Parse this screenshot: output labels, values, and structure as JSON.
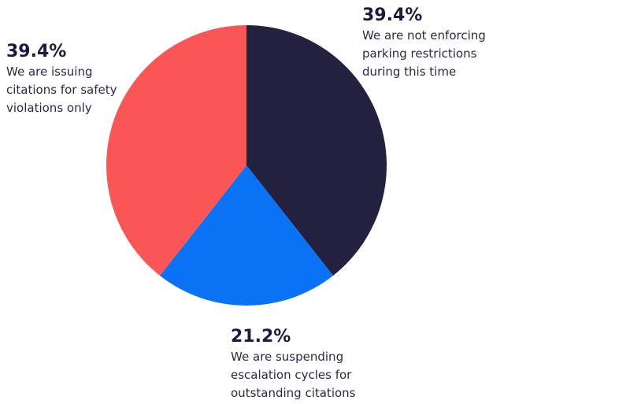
{
  "chart_data": {
    "type": "pie",
    "categories": [
      "We are not enforcing parking restrictions during this time",
      "We are suspending escalation cycles for outstanding citations",
      "We are issuing citations for safety violations only"
    ],
    "values": [
      39.4,
      21.2,
      39.4
    ],
    "value_labels": [
      "39.4%",
      "21.2%",
      "39.4%"
    ],
    "colors": [
      "#222240",
      "#0a72f5",
      "#fa5656"
    ]
  }
}
